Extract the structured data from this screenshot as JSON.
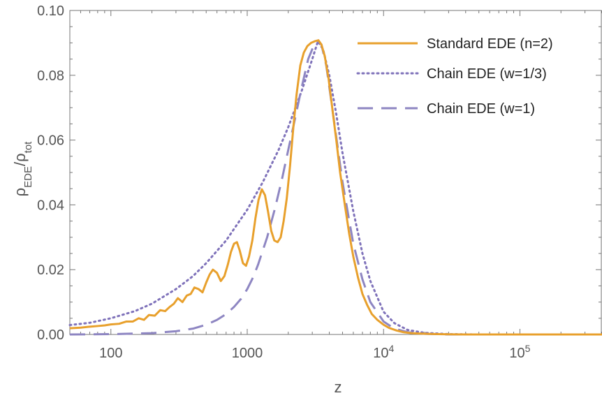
{
  "chart_data": {
    "type": "line",
    "title": "",
    "xlabel": "z",
    "ylabel": {
      "base": "ρ",
      "num_sub": "EDE",
      "den_base": "ρ",
      "den_sub": "tot"
    },
    "x_scale": "log",
    "xlim": [
      50,
      400000
    ],
    "ylim": [
      0,
      0.1
    ],
    "x_ticks": [
      {
        "value": 100,
        "base": "100",
        "exp": ""
      },
      {
        "value": 1000,
        "base": "1000",
        "exp": ""
      },
      {
        "value": 10000,
        "base": "10",
        "exp": "4"
      },
      {
        "value": 100000,
        "base": "10",
        "exp": "5"
      }
    ],
    "y_ticks": [
      {
        "value": 0.0,
        "label": "0.00"
      },
      {
        "value": 0.02,
        "label": "0.02"
      },
      {
        "value": 0.04,
        "label": "0.04"
      },
      {
        "value": 0.06,
        "label": "0.06"
      },
      {
        "value": 0.08,
        "label": "0.08"
      },
      {
        "value": 0.1,
        "label": "0.10"
      }
    ],
    "grid": false,
    "legend_position": "top-right",
    "series": [
      {
        "name": "Standard EDE (n=2)",
        "style": "solid",
        "color": "#E8A02C",
        "x": [
          50,
          60,
          70,
          80,
          90,
          100,
          115,
          130,
          145,
          160,
          175,
          190,
          210,
          230,
          250,
          270,
          290,
          310,
          335,
          360,
          385,
          410,
          440,
          470,
          500,
          530,
          560,
          600,
          640,
          680,
          720,
          760,
          800,
          840,
          880,
          930,
          980,
          1030,
          1090,
          1150,
          1210,
          1280,
          1350,
          1420,
          1500,
          1580,
          1670,
          1760,
          1850,
          1950,
          2060,
          2180,
          2300,
          2450,
          2600,
          2760,
          2940,
          3130,
          3330,
          3500,
          3700,
          3950,
          4200,
          4500,
          4800,
          5200,
          5600,
          6000,
          6500,
          7000,
          7600,
          8200,
          9000,
          10000,
          11000,
          12500,
          14000,
          16000,
          18000,
          21000,
          25000,
          30000,
          40000,
          60000,
          100000,
          200000,
          400000
        ],
        "y": [
          0.0019,
          0.0021,
          0.0024,
          0.0026,
          0.0028,
          0.0031,
          0.0033,
          0.004,
          0.004,
          0.005,
          0.0045,
          0.006,
          0.0058,
          0.0075,
          0.0072,
          0.0085,
          0.0095,
          0.0112,
          0.01,
          0.012,
          0.0125,
          0.0145,
          0.014,
          0.013,
          0.016,
          0.0185,
          0.02,
          0.019,
          0.0165,
          0.018,
          0.0215,
          0.0255,
          0.028,
          0.0285,
          0.026,
          0.022,
          0.0212,
          0.024,
          0.029,
          0.036,
          0.0415,
          0.0448,
          0.043,
          0.038,
          0.032,
          0.029,
          0.0285,
          0.03,
          0.035,
          0.042,
          0.052,
          0.064,
          0.074,
          0.083,
          0.087,
          0.089,
          0.09,
          0.0905,
          0.0908,
          0.0895,
          0.086,
          0.079,
          0.07,
          0.06,
          0.05,
          0.04,
          0.031,
          0.024,
          0.0175,
          0.0125,
          0.009,
          0.0063,
          0.0045,
          0.003,
          0.002,
          0.0012,
          0.0007,
          0.0004,
          0.0003,
          0.0002,
          0.0001,
          5e-05,
          0.0,
          0.0,
          0.0,
          0.0,
          0.0
        ]
      },
      {
        "name": "Chain EDE (w=1/3)",
        "style": "dotted",
        "color": "#7F72BA",
        "x": [
          50,
          70,
          100,
          150,
          200,
          300,
          400,
          500,
          700,
          1000,
          1300,
          1700,
          2000,
          2500,
          3000,
          3300,
          3600,
          4000,
          4500,
          5000,
          6000,
          7000,
          8000,
          10000,
          12000,
          15000,
          20000,
          30000,
          50000,
          100000,
          200000,
          400000
        ],
        "y": [
          0.0029,
          0.0036,
          0.005,
          0.0072,
          0.0095,
          0.014,
          0.018,
          0.022,
          0.029,
          0.0385,
          0.047,
          0.057,
          0.064,
          0.075,
          0.085,
          0.0905,
          0.088,
          0.08,
          0.068,
          0.056,
          0.038,
          0.025,
          0.0165,
          0.007,
          0.0035,
          0.0014,
          0.0005,
          0.0001,
          0.0,
          0.0,
          0.0,
          0.0
        ]
      },
      {
        "name": "Chain EDE (w=1)",
        "style": "dashed",
        "color": "#8E86C2",
        "x": [
          50,
          100,
          200,
          300,
          400,
          500,
          600,
          700,
          800,
          900,
          1000,
          1100,
          1200,
          1400,
          1600,
          1800,
          2000,
          2200,
          2500,
          2800,
          3100,
          3300,
          3500,
          3800,
          4200,
          4600,
          5000,
          5500,
          6000,
          7000,
          8000,
          10000,
          12000,
          15000,
          20000,
          30000,
          50000,
          100000,
          400000
        ],
        "y": [
          0.0,
          0.0001,
          0.0004,
          0.001,
          0.0018,
          0.003,
          0.0045,
          0.0063,
          0.0085,
          0.011,
          0.014,
          0.0175,
          0.0215,
          0.03,
          0.039,
          0.048,
          0.057,
          0.065,
          0.076,
          0.085,
          0.0895,
          0.0905,
          0.0895,
          0.083,
          0.07,
          0.058,
          0.047,
          0.037,
          0.028,
          0.017,
          0.01,
          0.004,
          0.0018,
          0.0007,
          0.0002,
          0.0,
          0.0,
          0.0,
          0.0
        ]
      }
    ]
  }
}
